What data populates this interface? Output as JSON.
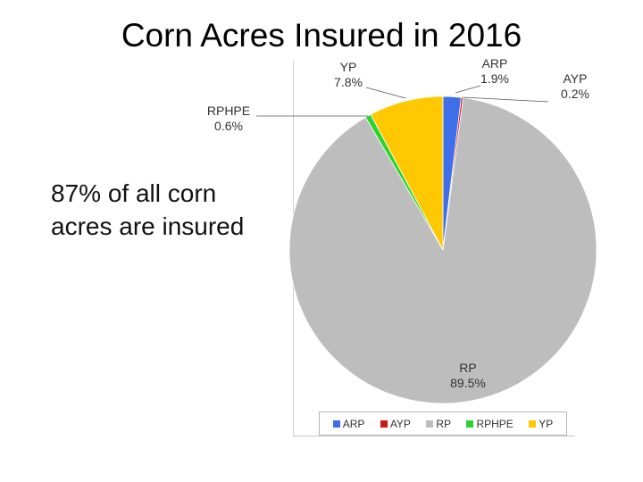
{
  "page": {
    "title": "Corn Acres Insured in 2016",
    "note": "87% of all corn acres are insured"
  },
  "chart_data": {
    "type": "pie",
    "title": "",
    "slices": [
      {
        "label": "ARP",
        "percent_label": "1.9%",
        "value": 1.9,
        "color": "#3f6fe8"
      },
      {
        "label": "AYP",
        "percent_label": "0.2%",
        "value": 0.2,
        "color": "#d01616"
      },
      {
        "label": "RP",
        "percent_label": "89.5%",
        "value": 89.5,
        "color": "#bdbdbd"
      },
      {
        "label": "RPHPE",
        "percent_label": "0.6%",
        "value": 0.6,
        "color": "#2fd12f"
      },
      {
        "label": "YP",
        "percent_label": "7.8%",
        "value": 7.8,
        "color": "#ffc800"
      }
    ],
    "legend": {
      "placement": "bottom",
      "items": [
        "ARP",
        "AYP",
        "RP",
        "RPHPE",
        "YP"
      ]
    }
  }
}
